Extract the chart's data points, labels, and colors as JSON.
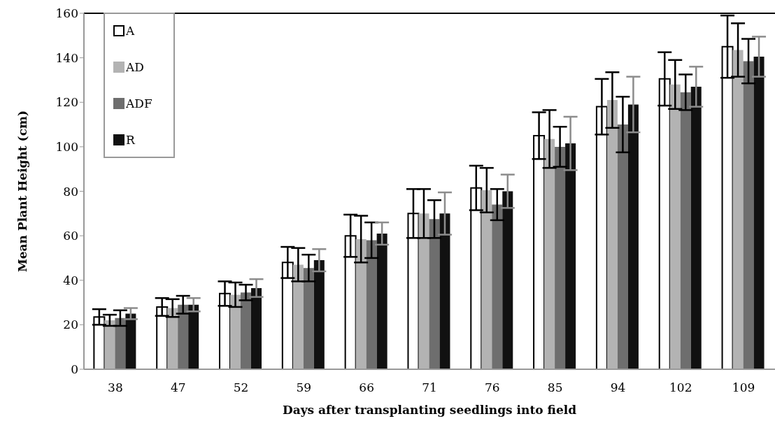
{
  "chart_data": {
    "type": "bar",
    "xlabel": "Days after transplanting seedlings into field",
    "ylabel": "Mean Plant Height (cm)",
    "categories": [
      "38",
      "47",
      "52",
      "59",
      "66",
      "71",
      "76",
      "85",
      "94",
      "102",
      "109"
    ],
    "series": [
      {
        "name": "A",
        "color": "#ffffff",
        "values": [
          23.5,
          28,
          34,
          48,
          60,
          70,
          81.5,
          105,
          118,
          130.5,
          145
        ],
        "errors": [
          3.5,
          4,
          5.5,
          7,
          9.5,
          11,
          10,
          10.5,
          12.5,
          12,
          14
        ]
      },
      {
        "name": "AD",
        "color": "#b3b3b3",
        "values": [
          22,
          27.5,
          33.5,
          47,
          58.5,
          70,
          80.5,
          103.5,
          121,
          128,
          143.5
        ],
        "errors": [
          2.5,
          4,
          5.5,
          7.5,
          10.5,
          11,
          10,
          13,
          12.5,
          11,
          12
        ]
      },
      {
        "name": "ADF",
        "color": "#6e6e6e",
        "values": [
          23,
          29,
          34.5,
          45.5,
          58,
          67.5,
          74,
          100,
          110,
          124.5,
          138.5
        ],
        "errors": [
          3.5,
          4,
          3.5,
          6,
          8,
          8.5,
          7,
          9,
          12.5,
          8,
          10
        ]
      },
      {
        "name": "R",
        "color": "#111111",
        "values": [
          25,
          29,
          36.5,
          49,
          61,
          70,
          80,
          101.5,
          119,
          127,
          140.5
        ],
        "errors": [
          2.5,
          3,
          4,
          5,
          5,
          9.5,
          7.5,
          12,
          12.5,
          9,
          9
        ]
      }
    ],
    "ylim": [
      0,
      160
    ],
    "yticks": [
      0,
      20,
      40,
      60,
      80,
      100,
      120,
      140,
      160
    ],
    "grid": false,
    "legend": "top left"
  }
}
